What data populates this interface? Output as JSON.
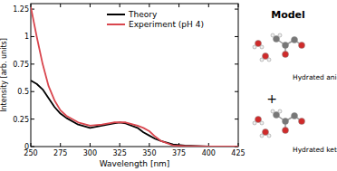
{
  "chart_data": {
    "type": "line",
    "x_label": "Wavelength [nm]",
    "y_label": "Intensity [arb. units]",
    "x": [
      250,
      255,
      260,
      265,
      270,
      275,
      280,
      290,
      300,
      310,
      320,
      325,
      330,
      340,
      345,
      350,
      355,
      360,
      370,
      380,
      400,
      425
    ],
    "series": [
      {
        "name": "Theory",
        "color": "#000000",
        "values": [
          0.6,
          0.57,
          0.52,
          0.44,
          0.36,
          0.3,
          0.26,
          0.2,
          0.17,
          0.19,
          0.21,
          0.22,
          0.21,
          0.17,
          0.13,
          0.1,
          0.07,
          0.05,
          0.02,
          0.01,
          0,
          0
        ]
      },
      {
        "name": "Experiment (pH 4)",
        "color": "#d9464e",
        "values": [
          1.27,
          1.0,
          0.75,
          0.55,
          0.42,
          0.33,
          0.28,
          0.22,
          0.19,
          0.2,
          0.22,
          0.22,
          0.22,
          0.19,
          0.17,
          0.14,
          0.09,
          0.05,
          0.01,
          0.005,
          0,
          0
        ]
      }
    ],
    "xlim": [
      250,
      425
    ],
    "xticks": [
      250,
      275,
      300,
      325,
      350,
      375,
      400,
      425
    ],
    "ylim": [
      0,
      1.3
    ],
    "yticks": [
      0,
      0.25,
      0.5,
      0.75,
      1,
      1.25
    ],
    "legend": "top",
    "grid": false,
    "annotations": [
      "Model",
      "Hydrated anion",
      "+",
      "Hydrated ketone"
    ]
  }
}
